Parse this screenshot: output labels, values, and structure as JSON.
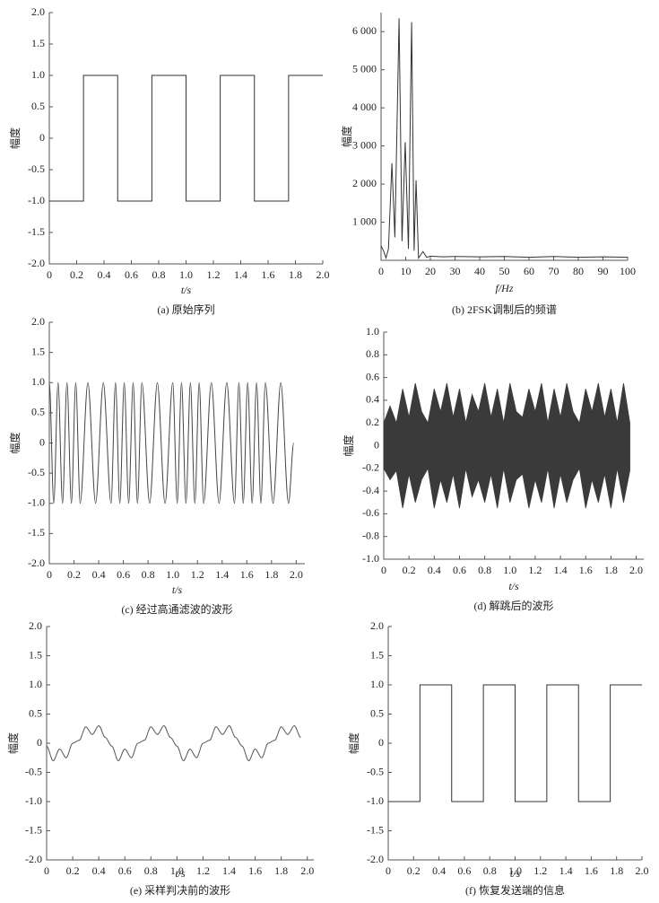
{
  "chart_data": [
    {
      "type": "line",
      "xlabel": "t/s",
      "ylabel": "幅度",
      "caption": "(a) 原始序列",
      "xlim": [
        0,
        2.0
      ],
      "ylim": [
        -2.0,
        2.0
      ],
      "xticks": [
        0,
        0.2,
        0.4,
        0.6,
        0.8,
        {
          "value": 1,
          "label": "1.0"
        },
        1.2,
        1.4,
        1.6,
        1.8,
        {
          "value": 2,
          "label": "2.0"
        }
      ],
      "yticks": [
        {
          "value": -2,
          "label": "-2.0"
        },
        -1.5,
        {
          "value": -1,
          "label": "-1.0"
        },
        -0.5,
        0,
        0.5,
        {
          "value": 1,
          "label": "1.0"
        },
        1.5,
        {
          "value": 2,
          "label": "2.0"
        }
      ],
      "x": [
        0,
        0.25,
        0.25,
        0.5,
        0.5,
        0.75,
        0.75,
        1.0,
        1.0,
        1.25,
        1.25,
        1.5,
        1.5,
        1.75,
        1.75,
        2.0
      ],
      "series": [
        {
          "color": "#333333",
          "values": [
            -1,
            -1,
            1,
            1,
            -1,
            -1,
            1,
            1,
            -1,
            -1,
            1,
            1,
            -1,
            -1,
            1,
            1
          ]
        }
      ]
    },
    {
      "type": "line",
      "xlabel": "f/Hz",
      "ylabel": "幅度",
      "caption": "(b) 2FSK调制后的频谱",
      "xlim": [
        0,
        100
      ],
      "ylim": [
        0,
        6500
      ],
      "xticks": [
        0,
        10,
        20,
        30,
        40,
        50,
        60,
        70,
        80,
        90,
        100
      ],
      "yticks": [
        {
          "value": 1000,
          "label": "1 000"
        },
        {
          "value": 2000,
          "label": "2 000"
        },
        {
          "value": 3000,
          "label": "3 000"
        },
        {
          "value": 4000,
          "label": "4 000"
        },
        {
          "value": 5000,
          "label": "5 000"
        },
        {
          "value": 6000,
          "label": "6 000"
        }
      ],
      "x": [
        0,
        1,
        2,
        3,
        4.4,
        5.6,
        7.3,
        8.5,
        9.8,
        11.1,
        12.4,
        13.4,
        14.2,
        15.2,
        17,
        18.5,
        20,
        25,
        30,
        40,
        50,
        60,
        70,
        80,
        90,
        100
      ],
      "series": [
        {
          "color": "#333333",
          "values": [
            380,
            250,
            60,
            300,
            2550,
            600,
            6350,
            500,
            3100,
            300,
            6250,
            250,
            2100,
            60,
            230,
            80,
            110,
            90,
            100,
            90,
            100,
            80,
            100,
            80,
            90,
            80
          ]
        }
      ]
    },
    {
      "type": "line",
      "smooth": true,
      "xlabel": "t/s",
      "ylabel": "幅度",
      "caption": "(c) 经过高通滤波的波形",
      "xlim": [
        0,
        2.07
      ],
      "ylim": [
        -2.0,
        2.0
      ],
      "xticks": [
        0,
        0.2,
        0.4,
        0.6,
        0.8,
        {
          "value": 1,
          "label": "1.0"
        },
        1.2,
        1.4,
        1.6,
        1.8,
        {
          "value": 2,
          "label": "2.0"
        }
      ],
      "yticks": [
        {
          "value": -2,
          "label": "-2.0"
        },
        -1.5,
        {
          "value": -1,
          "label": "-1.0"
        },
        -0.5,
        0,
        0.5,
        {
          "value": 1,
          "label": "1.0"
        },
        1.5,
        {
          "value": 2,
          "label": "2.0"
        }
      ],
      "x": [
        0,
        0.036,
        0.071,
        0.107,
        0.143,
        0.179,
        0.214,
        0.25,
        0.3125,
        0.375,
        0.4375,
        0.5,
        0.536,
        0.571,
        0.607,
        0.643,
        0.679,
        0.714,
        0.75,
        0.8125,
        0.875,
        0.9375,
        1.0,
        1.036,
        1.071,
        1.107,
        1.143,
        1.179,
        1.214,
        1.25,
        1.3125,
        1.375,
        1.4375,
        1.5,
        1.536,
        1.571,
        1.607,
        1.643,
        1.679,
        1.714,
        1.75,
        1.8125,
        1.875,
        1.9375,
        1.98
      ],
      "series": [
        {
          "color": "#444444",
          "values": [
            1,
            -1,
            1,
            -1,
            1,
            -1,
            1,
            -1,
            1,
            -1,
            1,
            -1,
            1,
            -1,
            1,
            -1,
            1,
            -1,
            1,
            -1,
            1,
            -1,
            1,
            -1,
            1,
            -1,
            1,
            -1,
            1,
            -1,
            1,
            -1,
            1,
            -1,
            1,
            -1,
            1,
            -1,
            1,
            -1,
            1,
            -1,
            1,
            -1,
            0
          ]
        }
      ]
    },
    {
      "type": "band",
      "xlabel": "t/s",
      "ylabel": "幅度",
      "caption": "(d) 解跳后的波形",
      "xlim": [
        0,
        2.06
      ],
      "ylim": [
        -1.0,
        1.0
      ],
      "xticks": [
        0,
        0.2,
        0.4,
        0.6,
        0.8,
        {
          "value": 1,
          "label": "1.0"
        },
        1.2,
        1.4,
        1.6,
        1.8,
        {
          "value": 2,
          "label": "2.0"
        }
      ],
      "yticks": [
        {
          "value": -1,
          "label": "-1.0"
        },
        -0.8,
        -0.6,
        -0.4,
        -0.2,
        0,
        0.2,
        0.4,
        0.6,
        0.8,
        {
          "value": 1,
          "label": "1.0"
        }
      ],
      "x": [
        0,
        0.05,
        0.1,
        0.15,
        0.2,
        0.25,
        0.3,
        0.35,
        0.4,
        0.45,
        0.5,
        0.55,
        0.6,
        0.65,
        0.7,
        0.75,
        0.8,
        0.85,
        0.9,
        0.95,
        1.0,
        1.05,
        1.1,
        1.15,
        1.2,
        1.25,
        1.3,
        1.35,
        1.4,
        1.45,
        1.5,
        1.55,
        1.6,
        1.65,
        1.7,
        1.75,
        1.8,
        1.85,
        1.9,
        1.95
      ],
      "series": [
        {
          "color": "#3a3a3a",
          "values": [
            0.2,
            0.35,
            0.2,
            0.5,
            0.25,
            0.55,
            0.3,
            0.2,
            0.5,
            0.3,
            0.55,
            0.25,
            0.5,
            0.2,
            0.45,
            0.3,
            0.55,
            0.25,
            0.5,
            0.2,
            0.55,
            0.3,
            0.25,
            0.5,
            0.3,
            0.55,
            0.2,
            0.5,
            0.25,
            0.55,
            0.3,
            0.2,
            0.5,
            0.3,
            0.55,
            0.25,
            0.5,
            0.2,
            0.55,
            0.2
          ]
        },
        {
          "color": "#3a3a3a",
          "values": [
            -0.2,
            -0.3,
            -0.22,
            -0.55,
            -0.25,
            -0.5,
            -0.3,
            -0.2,
            -0.55,
            -0.3,
            -0.5,
            -0.25,
            -0.55,
            -0.2,
            -0.45,
            -0.3,
            -0.5,
            -0.25,
            -0.55,
            -0.2,
            -0.5,
            -0.3,
            -0.25,
            -0.55,
            -0.3,
            -0.5,
            -0.2,
            -0.55,
            -0.25,
            -0.5,
            -0.3,
            -0.2,
            -0.55,
            -0.3,
            -0.5,
            -0.25,
            -0.55,
            -0.2,
            -0.5,
            -0.22
          ]
        }
      ]
    },
    {
      "type": "line",
      "smooth": true,
      "xlabel": "t/s",
      "ylabel": "幅度",
      "caption": "(e) 采样判决前的波形",
      "xlim": [
        0,
        2.05
      ],
      "ylim": [
        -2.0,
        2.0
      ],
      "xticks": [
        0,
        0.2,
        0.4,
        0.6,
        0.8,
        {
          "value": 1,
          "label": "1.0"
        },
        1.2,
        1.4,
        1.6,
        1.8,
        {
          "value": 2,
          "label": "2.0"
        }
      ],
      "yticks": [
        {
          "value": -2,
          "label": "-2.0"
        },
        -1.5,
        {
          "value": -1,
          "label": "-1.0"
        },
        -0.5,
        0,
        0.5,
        {
          "value": 1,
          "label": "1.0"
        },
        1.5,
        {
          "value": 2,
          "label": "2.0"
        }
      ],
      "x": [
        0,
        0.05,
        0.1,
        0.15,
        0.2,
        0.25,
        0.3,
        0.35,
        0.4,
        0.45,
        0.5,
        0.55,
        0.6,
        0.65,
        0.7,
        0.75,
        0.8,
        0.85,
        0.9,
        0.95,
        1.0,
        1.05,
        1.1,
        1.15,
        1.2,
        1.25,
        1.3,
        1.35,
        1.4,
        1.45,
        1.5,
        1.55,
        1.6,
        1.65,
        1.7,
        1.75,
        1.8,
        1.85,
        1.9,
        1.95
      ],
      "series": [
        {
          "color": "#555555",
          "values": [
            -0.05,
            -0.3,
            -0.1,
            -0.25,
            0,
            0.05,
            0.28,
            0.15,
            0.3,
            0.1,
            -0.05,
            -0.3,
            -0.1,
            -0.25,
            0,
            0.05,
            0.28,
            0.15,
            0.3,
            0.1,
            -0.05,
            -0.3,
            -0.1,
            -0.25,
            0,
            0.05,
            0.28,
            0.15,
            0.3,
            0.1,
            -0.05,
            -0.3,
            -0.1,
            -0.25,
            0,
            0.05,
            0.28,
            0.15,
            0.3,
            0.1
          ]
        }
      ]
    },
    {
      "type": "line",
      "xlabel": "t/s",
      "ylabel": "幅度",
      "caption": "(f) 恢复发送端的信息",
      "xlim": [
        0,
        2.0
      ],
      "ylim": [
        -2.0,
        2.0
      ],
      "xticks": [
        0,
        0.2,
        0.4,
        0.6,
        0.8,
        {
          "value": 1,
          "label": "1.0"
        },
        1.2,
        1.4,
        1.6,
        1.8,
        {
          "value": 2,
          "label": "2.0"
        }
      ],
      "yticks": [
        {
          "value": -2,
          "label": "-2.0"
        },
        -1.5,
        {
          "value": -1,
          "label": "-1.0"
        },
        -0.5,
        0,
        0.5,
        {
          "value": 1,
          "label": "1.0"
        },
        1.5,
        {
          "value": 2,
          "label": "2.0"
        }
      ],
      "x": [
        0,
        0.25,
        0.25,
        0.5,
        0.5,
        0.75,
        0.75,
        1.0,
        1.0,
        1.25,
        1.25,
        1.5,
        1.5,
        1.75,
        1.75,
        2.0
      ],
      "series": [
        {
          "color": "#333333",
          "values": [
            -1,
            -1,
            1,
            1,
            -1,
            -1,
            1,
            1,
            -1,
            -1,
            1,
            1,
            -1,
            -1,
            1,
            1
          ]
        }
      ]
    }
  ]
}
